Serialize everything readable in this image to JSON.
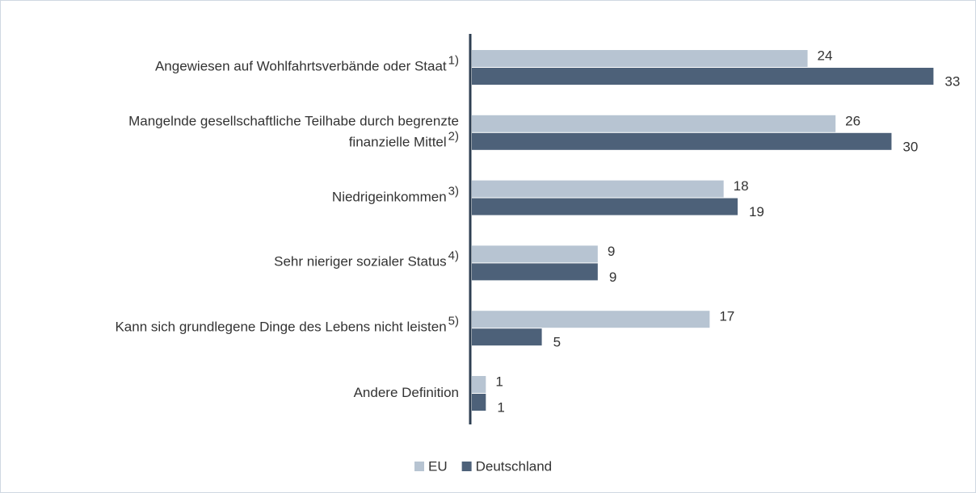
{
  "chart_data": {
    "type": "hbar",
    "categories": [
      "Angewiesen auf Wohlfahrtsverbände oder Staat",
      "Mangelnde gesellschaftliche Teilhabe durch begrenzte\nfinanzielle Mittel",
      "Niedrigeinkommen",
      "Sehr nieriger sozialer Status",
      "Kann sich grundlegene Dinge des Lebens nicht  leisten",
      "Andere Definition"
    ],
    "footnotes": [
      "1)",
      "2)",
      "3)",
      "4)",
      "5)",
      null
    ],
    "series": [
      {
        "name": "EU",
        "color": "#b7c4d2",
        "values": [
          24,
          26,
          18,
          9,
          17,
          1
        ]
      },
      {
        "name": "Deutschland",
        "color": "#4d6179",
        "values": [
          33,
          30,
          19,
          9,
          5,
          1
        ]
      }
    ],
    "xlim": [
      0,
      35
    ],
    "legend": "bottom"
  }
}
